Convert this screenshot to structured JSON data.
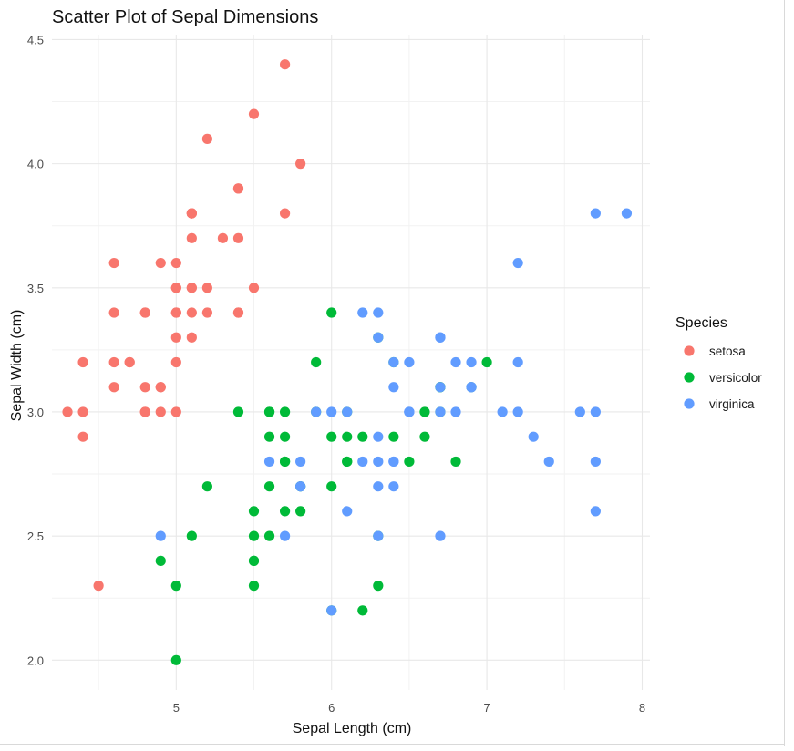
{
  "chart_data": {
    "type": "scatter",
    "title": "Scatter Plot of Sepal Dimensions",
    "xlabel": "Sepal Length (cm)",
    "ylabel": "Sepal Width (cm)",
    "xlim": [
      4.2,
      8.05
    ],
    "ylim": [
      1.88,
      4.52
    ],
    "xticks": [
      5,
      6,
      7,
      8
    ],
    "yticks": [
      2.0,
      2.5,
      3.0,
      3.5,
      4.0,
      4.5
    ],
    "xtick_labels": [
      "5",
      "6",
      "7",
      "8"
    ],
    "ytick_labels": [
      "2.0",
      "2.5",
      "3.0",
      "3.5",
      "4.0",
      "4.5"
    ],
    "grid": true,
    "legend": {
      "title": "Species",
      "placement": "right"
    },
    "series": [
      {
        "name": "setosa",
        "color": "#F8766D",
        "points": [
          [
            5.1,
            3.5
          ],
          [
            4.9,
            3.0
          ],
          [
            4.7,
            3.2
          ],
          [
            4.6,
            3.1
          ],
          [
            5.0,
            3.6
          ],
          [
            5.4,
            3.9
          ],
          [
            4.6,
            3.4
          ],
          [
            5.0,
            3.4
          ],
          [
            4.4,
            2.9
          ],
          [
            4.9,
            3.1
          ],
          [
            5.4,
            3.7
          ],
          [
            4.8,
            3.4
          ],
          [
            4.8,
            3.0
          ],
          [
            4.3,
            3.0
          ],
          [
            5.8,
            4.0
          ],
          [
            5.7,
            4.4
          ],
          [
            5.4,
            3.9
          ],
          [
            5.1,
            3.5
          ],
          [
            5.7,
            3.8
          ],
          [
            5.1,
            3.8
          ],
          [
            5.4,
            3.4
          ],
          [
            5.1,
            3.7
          ],
          [
            4.6,
            3.6
          ],
          [
            5.1,
            3.3
          ],
          [
            4.8,
            3.4
          ],
          [
            5.0,
            3.0
          ],
          [
            5.0,
            3.4
          ],
          [
            5.2,
            3.5
          ],
          [
            5.2,
            3.4
          ],
          [
            4.7,
            3.2
          ],
          [
            4.8,
            3.1
          ],
          [
            5.4,
            3.4
          ],
          [
            5.2,
            4.1
          ],
          [
            5.5,
            4.2
          ],
          [
            4.9,
            3.1
          ],
          [
            5.0,
            3.2
          ],
          [
            5.5,
            3.5
          ],
          [
            4.9,
            3.6
          ],
          [
            4.4,
            3.0
          ],
          [
            5.1,
            3.4
          ],
          [
            5.0,
            3.5
          ],
          [
            4.5,
            2.3
          ],
          [
            4.4,
            3.2
          ],
          [
            5.0,
            3.5
          ],
          [
            5.1,
            3.8
          ],
          [
            4.8,
            3.0
          ],
          [
            5.1,
            3.8
          ],
          [
            4.6,
            3.2
          ],
          [
            5.3,
            3.7
          ],
          [
            5.0,
            3.3
          ]
        ]
      },
      {
        "name": "versicolor",
        "color": "#00BA38",
        "points": [
          [
            7.0,
            3.2
          ],
          [
            6.4,
            3.2
          ],
          [
            6.9,
            3.1
          ],
          [
            5.5,
            2.3
          ],
          [
            6.5,
            2.8
          ],
          [
            5.7,
            2.8
          ],
          [
            6.3,
            3.3
          ],
          [
            4.9,
            2.4
          ],
          [
            6.6,
            2.9
          ],
          [
            5.2,
            2.7
          ],
          [
            5.0,
            2.0
          ],
          [
            5.9,
            3.0
          ],
          [
            6.0,
            2.2
          ],
          [
            6.1,
            2.9
          ],
          [
            5.6,
            2.9
          ],
          [
            6.7,
            3.1
          ],
          [
            5.6,
            3.0
          ],
          [
            5.8,
            2.7
          ],
          [
            6.2,
            2.2
          ],
          [
            5.6,
            2.5
          ],
          [
            5.9,
            3.2
          ],
          [
            6.1,
            2.8
          ],
          [
            6.3,
            2.5
          ],
          [
            6.1,
            2.8
          ],
          [
            6.4,
            2.9
          ],
          [
            6.6,
            3.0
          ],
          [
            6.8,
            2.8
          ],
          [
            6.7,
            3.0
          ],
          [
            6.0,
            2.9
          ],
          [
            5.7,
            2.6
          ],
          [
            5.5,
            2.4
          ],
          [
            5.5,
            2.4
          ],
          [
            5.8,
            2.7
          ],
          [
            6.0,
            2.7
          ],
          [
            5.4,
            3.0
          ],
          [
            6.0,
            3.4
          ],
          [
            6.7,
            3.1
          ],
          [
            6.3,
            2.3
          ],
          [
            5.6,
            3.0
          ],
          [
            5.5,
            2.5
          ],
          [
            5.5,
            2.6
          ],
          [
            6.1,
            3.0
          ],
          [
            5.8,
            2.6
          ],
          [
            5.0,
            2.3
          ],
          [
            5.6,
            2.7
          ],
          [
            5.7,
            3.0
          ],
          [
            5.7,
            2.9
          ],
          [
            6.2,
            2.9
          ],
          [
            5.1,
            2.5
          ],
          [
            5.7,
            2.8
          ]
        ]
      },
      {
        "name": "virginica",
        "color": "#619CFF",
        "points": [
          [
            6.3,
            3.3
          ],
          [
            5.8,
            2.7
          ],
          [
            7.1,
            3.0
          ],
          [
            6.3,
            2.9
          ],
          [
            6.5,
            3.0
          ],
          [
            7.6,
            3.0
          ],
          [
            4.9,
            2.5
          ],
          [
            7.3,
            2.9
          ],
          [
            6.7,
            2.5
          ],
          [
            7.2,
            3.6
          ],
          [
            6.5,
            3.2
          ],
          [
            6.4,
            2.7
          ],
          [
            6.8,
            3.0
          ],
          [
            5.7,
            2.5
          ],
          [
            5.8,
            2.8
          ],
          [
            6.4,
            3.2
          ],
          [
            6.5,
            3.0
          ],
          [
            7.7,
            3.8
          ],
          [
            7.7,
            2.6
          ],
          [
            6.0,
            2.2
          ],
          [
            6.9,
            3.2
          ],
          [
            5.6,
            2.8
          ],
          [
            7.7,
            2.8
          ],
          [
            6.3,
            2.7
          ],
          [
            6.7,
            3.3
          ],
          [
            7.2,
            3.2
          ],
          [
            6.2,
            2.8
          ],
          [
            6.1,
            3.0
          ],
          [
            6.4,
            2.8
          ],
          [
            7.2,
            3.0
          ],
          [
            7.4,
            2.8
          ],
          [
            7.9,
            3.8
          ],
          [
            6.4,
            2.8
          ],
          [
            6.3,
            2.8
          ],
          [
            6.1,
            2.6
          ],
          [
            7.7,
            3.0
          ],
          [
            6.3,
            3.4
          ],
          [
            6.4,
            3.1
          ],
          [
            6.0,
            3.0
          ],
          [
            6.9,
            3.1
          ],
          [
            6.7,
            3.1
          ],
          [
            6.9,
            3.1
          ],
          [
            5.8,
            2.7
          ],
          [
            6.8,
            3.2
          ],
          [
            6.7,
            3.3
          ],
          [
            6.7,
            3.0
          ],
          [
            6.3,
            2.5
          ],
          [
            6.5,
            3.0
          ],
          [
            6.2,
            3.4
          ],
          [
            5.9,
            3.0
          ]
        ]
      }
    ]
  }
}
